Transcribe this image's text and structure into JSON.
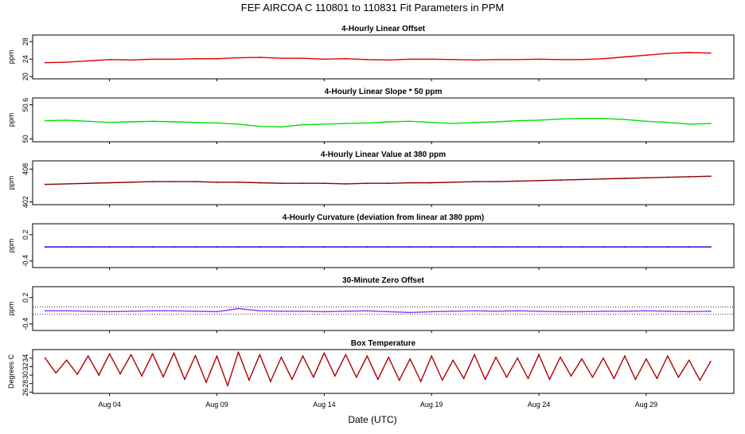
{
  "title": "FEF   AIRCOA C   110801 to 110831   Fit Parameters in PPM",
  "x_axis": {
    "label": "Date (UTC)",
    "ticks": [
      {
        "date": "2011-08-04",
        "label": "Aug 04"
      },
      {
        "date": "2011-08-09",
        "label": "Aug 09"
      },
      {
        "date": "2011-08-14",
        "label": "Aug 14"
      },
      {
        "date": "2011-08-19",
        "label": "Aug 19"
      },
      {
        "date": "2011-08-24",
        "label": "Aug 24"
      },
      {
        "date": "2011-08-29",
        "label": "Aug 29"
      }
    ],
    "range": [
      "2011-07-31T10:00",
      "2011-09-02T02:00"
    ]
  },
  "chart_data": [
    {
      "type": "line",
      "title": "4-Hourly Linear Offset",
      "ylabel": "ppm",
      "ylim": [
        19.5,
        29.5
      ],
      "yticks": [
        20,
        24,
        28
      ],
      "color": "#e00000",
      "x_days": [
        1,
        2,
        3,
        4,
        5,
        6,
        7,
        8,
        9,
        10,
        11,
        12,
        13,
        14,
        15,
        16,
        17,
        18,
        19,
        20,
        21,
        22,
        23,
        24,
        25,
        26,
        27,
        28,
        29,
        30,
        31,
        32
      ],
      "values": [
        23.2,
        23.3,
        23.6,
        23.9,
        23.8,
        24.0,
        24.0,
        24.1,
        24.1,
        24.3,
        24.4,
        24.2,
        24.2,
        24.0,
        24.1,
        23.9,
        23.8,
        24.0,
        24.0,
        23.9,
        23.8,
        23.9,
        23.9,
        24.0,
        23.9,
        23.9,
        24.1,
        24.5,
        24.9,
        25.3,
        25.5,
        25.4
      ]
    },
    {
      "type": "line",
      "title": "4-Hourly Linear Slope * 50 ppm",
      "ylabel": "ppm",
      "ylim": [
        49.95,
        50.72
      ],
      "yticks": [
        50.0,
        50.6
      ],
      "color": "#00e000",
      "x_days": [
        1,
        2,
        3,
        4,
        5,
        6,
        7,
        8,
        9,
        10,
        11,
        12,
        13,
        14,
        15,
        16,
        17,
        18,
        19,
        20,
        21,
        22,
        23,
        24,
        25,
        26,
        27,
        28,
        29,
        30,
        31,
        32
      ],
      "values": [
        50.32,
        50.33,
        50.31,
        50.29,
        50.3,
        50.31,
        50.3,
        50.29,
        50.28,
        50.26,
        50.22,
        50.21,
        50.25,
        50.26,
        50.27,
        50.28,
        50.3,
        50.31,
        50.29,
        50.27,
        50.29,
        50.3,
        50.32,
        50.33,
        50.35,
        50.36,
        50.36,
        50.34,
        50.31,
        50.29,
        50.26,
        50.27
      ]
    },
    {
      "type": "line",
      "title": "4-Hourly Linear Value at 380 ppm",
      "ylabel": "ppm",
      "ylim": [
        401.5,
        409.5
      ],
      "yticks": [
        402,
        408
      ],
      "color": "#8b0000",
      "x_days": [
        1,
        2,
        3,
        4,
        5,
        6,
        7,
        8,
        9,
        10,
        11,
        12,
        13,
        14,
        15,
        16,
        17,
        18,
        19,
        20,
        21,
        22,
        23,
        24,
        25,
        26,
        27,
        28,
        29,
        30,
        31,
        32
      ],
      "values": [
        405.2,
        405.3,
        405.4,
        405.5,
        405.6,
        405.7,
        405.7,
        405.7,
        405.6,
        405.6,
        405.5,
        405.4,
        405.4,
        405.4,
        405.3,
        405.4,
        405.4,
        405.5,
        405.5,
        405.6,
        405.7,
        405.7,
        405.8,
        405.9,
        406.0,
        406.1,
        406.2,
        406.3,
        406.4,
        406.5,
        406.6,
        406.7
      ]
    },
    {
      "type": "line",
      "title": "4-Hourly Curvature (deviation from linear at 380 ppm)",
      "ylabel": "ppm",
      "ylim": [
        -0.55,
        0.45
      ],
      "yticks": [
        -0.4,
        0.2
      ],
      "color": "#0000cc",
      "x_days": [
        1,
        2,
        3,
        4,
        5,
        6,
        7,
        8,
        9,
        10,
        11,
        12,
        13,
        14,
        15,
        16,
        17,
        18,
        19,
        20,
        21,
        22,
        23,
        24,
        25,
        26,
        27,
        28,
        29,
        30,
        31,
        32
      ],
      "values": [
        -0.08,
        -0.08,
        -0.08,
        -0.08,
        -0.08,
        -0.08,
        -0.08,
        -0.08,
        -0.08,
        -0.08,
        -0.08,
        -0.08,
        -0.08,
        -0.08,
        -0.08,
        -0.08,
        -0.08,
        -0.08,
        -0.08,
        -0.08,
        -0.08,
        -0.08,
        -0.08,
        -0.08,
        -0.08,
        -0.08,
        -0.08,
        -0.08,
        -0.08,
        -0.08,
        -0.08,
        -0.08
      ]
    },
    {
      "type": "line",
      "title": "30-Minute Zero Offset",
      "ylabel": "ppm",
      "ylim": [
        -0.55,
        0.45
      ],
      "yticks": [
        -0.4,
        0.2
      ],
      "reference_lines": [
        -0.01,
        -0.18
      ],
      "color": "#9b30ff",
      "x_days": [
        1,
        2,
        3,
        4,
        5,
        6,
        7,
        8,
        9,
        10,
        11,
        12,
        13,
        14,
        15,
        16,
        17,
        18,
        19,
        20,
        21,
        22,
        23,
        24,
        25,
        26,
        27,
        28,
        29,
        30,
        31,
        32
      ],
      "values": [
        -0.1,
        -0.1,
        -0.11,
        -0.12,
        -0.11,
        -0.1,
        -0.1,
        -0.11,
        -0.12,
        -0.05,
        -0.1,
        -0.11,
        -0.11,
        -0.12,
        -0.11,
        -0.1,
        -0.12,
        -0.14,
        -0.12,
        -0.11,
        -0.1,
        -0.11,
        -0.1,
        -0.11,
        -0.12,
        -0.12,
        -0.11,
        -0.11,
        -0.1,
        -0.11,
        -0.12,
        -0.11
      ]
    },
    {
      "type": "line",
      "title": "Box Temperature",
      "ylabel": "Degrees C",
      "ylim": [
        25.7,
        36.0
      ],
      "yticks": [
        26,
        28,
        30,
        32,
        34
      ],
      "color": "#b00000",
      "x_days": [
        1,
        1.5,
        2,
        2.5,
        3,
        3.5,
        4,
        4.5,
        5,
        5.5,
        6,
        6.5,
        7,
        7.5,
        8,
        8.5,
        9,
        9.5,
        10,
        10.5,
        11,
        11.5,
        12,
        12.5,
        13,
        13.5,
        14,
        14.5,
        15,
        15.5,
        16,
        16.5,
        17,
        17.5,
        18,
        18.5,
        19,
        19.5,
        20,
        20.5,
        21,
        21.5,
        22,
        22.5,
        23,
        23.5,
        24,
        24.5,
        25,
        25.5,
        26,
        26.5,
        27,
        27.5,
        28,
        28.5,
        29,
        29.5,
        30,
        30.5,
        31,
        31.5,
        32
      ],
      "values": [
        34.0,
        30.5,
        33.5,
        30.2,
        34.5,
        30.0,
        35.0,
        30.3,
        34.8,
        29.8,
        35.0,
        29.6,
        35.2,
        29.0,
        34.6,
        28.3,
        34.5,
        27.5,
        35.4,
        28.8,
        34.8,
        28.5,
        34.2,
        29.0,
        34.5,
        29.5,
        35.2,
        29.8,
        34.8,
        29.5,
        34.5,
        29.0,
        34.2,
        28.8,
        33.8,
        28.5,
        34.5,
        28.8,
        33.5,
        29.2,
        34.8,
        29.0,
        34.2,
        29.5,
        34.0,
        29.2,
        34.8,
        29.0,
        34.2,
        29.8,
        33.8,
        29.5,
        34.0,
        29.2,
        34.5,
        29.0,
        33.8,
        29.2,
        34.5,
        29.5,
        33.5,
        28.8,
        33.2
      ]
    }
  ]
}
